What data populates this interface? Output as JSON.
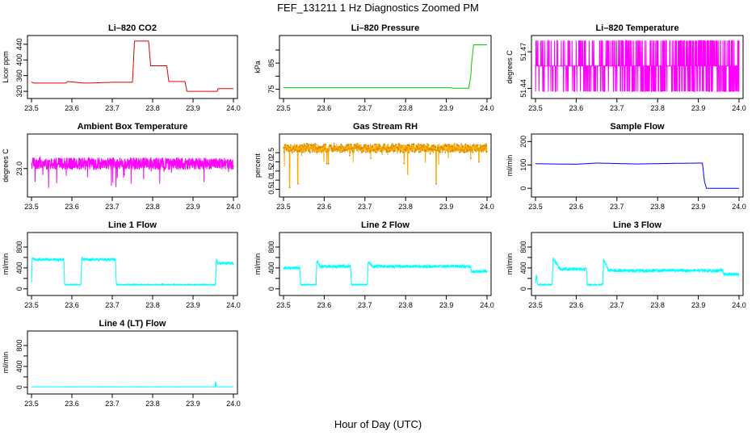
{
  "figure": {
    "title": "FEF_131211  1 Hz Diagnostics Zoomed PM",
    "xlabel": "Hour of Day (UTC)"
  },
  "chart_data": [
    {
      "id": "co2",
      "type": "line",
      "title": "Li–820 CO2",
      "ylabel": "Licor ppm",
      "color": "#dd0000",
      "xlim": [
        23.5,
        24.0
      ],
      "ylim": [
        312,
        452
      ],
      "xticks": [
        23.5,
        23.6,
        23.7,
        23.8,
        23.9,
        24.0
      ],
      "xtick_labels": [
        "23.5",
        "23.6",
        "23.7",
        "23.8",
        "23.9",
        "24.0"
      ],
      "yticks": [
        320,
        360,
        400,
        440
      ],
      "ytick_labels": [
        "320",
        "360",
        "400",
        "440"
      ],
      "series": [
        {
          "x": [
            23.5,
            23.505,
            23.51,
            23.585,
            23.59,
            23.63,
            23.64,
            23.7,
            23.75,
            23.755,
            23.79,
            23.795,
            23.835,
            23.84,
            23.88,
            23.885,
            23.96,
            23.962,
            24.0
          ],
          "y": [
            344,
            341,
            341,
            341,
            345,
            341,
            341,
            343,
            343,
            448,
            448,
            385,
            385,
            345,
            345,
            320,
            320,
            327,
            327
          ]
        }
      ]
    },
    {
      "id": "pressure",
      "type": "line",
      "title": "Li–820 Pressure",
      "ylabel": "kPa",
      "color": "#00cc00",
      "xlim": [
        23.5,
        24.0
      ],
      "ylim": [
        73,
        94
      ],
      "xticks": [
        23.5,
        23.6,
        23.7,
        23.8,
        23.9,
        24.0
      ],
      "xtick_labels": [
        "23.5",
        "23.6",
        "23.7",
        "23.8",
        "23.9",
        "24.0"
      ],
      "yticks": [
        75,
        80,
        85,
        90
      ],
      "ytick_labels": [
        "75",
        "",
        "85",
        ""
      ],
      "series": [
        {
          "x": [
            23.5,
            23.91,
            23.915,
            23.955,
            23.96,
            23.962,
            23.965,
            23.967,
            24.0
          ],
          "y": [
            75.6,
            75.6,
            75.4,
            75.4,
            80,
            85,
            89,
            92,
            92
          ]
        }
      ]
    },
    {
      "id": "licor_temp",
      "type": "line",
      "title": "Li–820 Temperature",
      "ylabel": "degrees C",
      "color": "#ff00ff",
      "xlim": [
        23.5,
        24.0
      ],
      "ylim": [
        51.435,
        51.48
      ],
      "xticks": [
        23.5,
        23.6,
        23.7,
        23.8,
        23.9,
        24.0
      ],
      "xtick_labels": [
        "23.5",
        "23.6",
        "23.7",
        "23.8",
        "23.9",
        "24.0"
      ],
      "yticks": [
        51.44,
        51.47
      ],
      "ytick_labels": [
        "51.44",
        "51.47"
      ],
      "pattern": {
        "kind": "quantized",
        "levels": [
          51.4375,
          51.4583,
          51.4792
        ],
        "base_level": 1,
        "density": [
          0.15,
          0.55
        ]
      }
    },
    {
      "id": "ambient_temp",
      "type": "line",
      "title": "Ambient Box Temperature",
      "ylabel": "degrees C",
      "color": "#ff00ff",
      "xlim": [
        23.5,
        24.0
      ],
      "ylim": [
        22.6,
        23.5
      ],
      "xticks": [
        23.5,
        23.6,
        23.7,
        23.8,
        23.9,
        24.0
      ],
      "xtick_labels": [
        "23.5",
        "23.6",
        "23.7",
        "23.8",
        "23.9",
        "24.0"
      ],
      "yticks": [
        23.0
      ],
      "ytick_labels": [
        "23.0"
      ],
      "pattern": {
        "kind": "noise",
        "mean": 23.08,
        "amplitude": 0.2,
        "spike_depth": 0.4
      }
    },
    {
      "id": "rh",
      "type": "line",
      "title": "Gas Stream RH",
      "ylabel": "percent",
      "color": "#ffaa00",
      "xlim": [
        23.5,
        24.0
      ],
      "ylim": [
        0.3,
        3.3
      ],
      "xticks": [
        23.5,
        23.6,
        23.7,
        23.8,
        23.9,
        24.0
      ],
      "xtick_labels": [
        "23.5",
        "23.6",
        "23.7",
        "23.8",
        "23.9",
        "24.0"
      ],
      "yticks": [
        0.5,
        1.0,
        1.5,
        2.0,
        2.5
      ],
      "ytick_labels": [
        "0.5",
        "1.0",
        "1.5",
        "2.0",
        "2.5"
      ],
      "pattern": {
        "kind": "noise",
        "mean": 2.75,
        "amplitude": 0.5,
        "spike_depth": 1.0
      },
      "dips": [
        {
          "x": 23.515,
          "y": 0.6
        },
        {
          "x": 23.535,
          "y": 0.8
        },
        {
          "x": 23.61,
          "y": 1.9
        },
        {
          "x": 23.805,
          "y": 1.3
        },
        {
          "x": 23.875,
          "y": 0.8
        },
        {
          "x": 23.98,
          "y": 2.0
        }
      ]
    },
    {
      "id": "sample_flow",
      "type": "line",
      "title": "Sample Flow",
      "ylabel": "ml/min",
      "color": "#0000ff",
      "xlim": [
        23.5,
        24.0
      ],
      "ylim": [
        -20,
        215
      ],
      "xticks": [
        23.5,
        23.6,
        23.7,
        23.8,
        23.9,
        24.0
      ],
      "xtick_labels": [
        "23.5",
        "23.6",
        "23.7",
        "23.8",
        "23.9",
        "24.0"
      ],
      "yticks": [
        0,
        100,
        200
      ],
      "ytick_labels": [
        "0",
        "100",
        "200"
      ],
      "series": [
        {
          "x": [
            23.5,
            23.6,
            23.65,
            23.75,
            23.85,
            23.91,
            23.915,
            23.92,
            24.0
          ],
          "y": [
            105,
            103,
            108,
            104,
            107,
            108,
            30,
            0,
            0
          ]
        }
      ]
    },
    {
      "id": "line1",
      "type": "line",
      "title": "Line 1 Flow",
      "ylabel": "ml/min",
      "color": "#00ffff",
      "xlim": [
        23.5,
        24.0
      ],
      "ylim": [
        -50,
        1000
      ],
      "xticks": [
        23.5,
        23.6,
        23.7,
        23.8,
        23.9,
        24.0
      ],
      "xtick_labels": [
        "23.5",
        "23.6",
        "23.7",
        "23.8",
        "23.9",
        "24.0"
      ],
      "yticks": [
        0,
        200,
        400,
        600,
        800
      ],
      "ytick_labels": [
        "0",
        "400",
        "800",
        "",
        ""
      ],
      "ytick_label_values": [
        0,
        400,
        800
      ],
      "series": [
        {
          "x": [
            23.5,
            23.502,
            23.505,
            23.58,
            23.582,
            23.622,
            23.625,
            23.628,
            23.708,
            23.71,
            23.955,
            23.958,
            23.96,
            24.0
          ],
          "y": [
            120,
            620,
            560,
            560,
            80,
            80,
            620,
            560,
            560,
            80,
            80,
            580,
            490,
            490
          ]
        }
      ],
      "noise": 25
    },
    {
      "id": "line2",
      "type": "line",
      "title": "Line 2 Flow",
      "ylabel": "ml/min",
      "color": "#00ffff",
      "xlim": [
        23.5,
        24.0
      ],
      "ylim": [
        -50,
        1000
      ],
      "xticks": [
        23.5,
        23.6,
        23.7,
        23.8,
        23.9,
        24.0
      ],
      "xtick_labels": [
        "23.5",
        "23.6",
        "23.7",
        "23.8",
        "23.9",
        "24.0"
      ],
      "yticks": [
        0,
        200,
        400,
        600,
        800
      ],
      "ytick_labels": [
        "0",
        "400",
        "800",
        "",
        ""
      ],
      "ytick_label_values": [
        0,
        400,
        800
      ],
      "series": [
        {
          "x": [
            23.5,
            23.54,
            23.542,
            23.58,
            23.582,
            23.59,
            23.665,
            23.667,
            23.706,
            23.708,
            23.72,
            23.96,
            23.962,
            24.0
          ],
          "y": [
            400,
            400,
            80,
            80,
            540,
            430,
            430,
            80,
            80,
            520,
            430,
            430,
            330,
            330
          ]
        }
      ],
      "noise": 30
    },
    {
      "id": "line3",
      "type": "line",
      "title": "Line 3 Flow",
      "ylabel": "ml/min",
      "color": "#00ffff",
      "xlim": [
        23.5,
        24.0
      ],
      "ylim": [
        -50,
        1000
      ],
      "xticks": [
        23.5,
        23.6,
        23.7,
        23.8,
        23.9,
        24.0
      ],
      "xtick_labels": [
        "23.5",
        "23.6",
        "23.7",
        "23.8",
        "23.9",
        "24.0"
      ],
      "yticks": [
        0,
        200,
        400,
        600,
        800
      ],
      "ytick_labels": [
        "0",
        "400",
        "800",
        "",
        ""
      ],
      "ytick_label_values": [
        0,
        400,
        800
      ],
      "series": [
        {
          "x": [
            23.5,
            23.502,
            23.505,
            23.541,
            23.543,
            23.56,
            23.625,
            23.627,
            23.665,
            23.667,
            23.68,
            23.96,
            23.962,
            24.0
          ],
          "y": [
            100,
            300,
            80,
            80,
            580,
            380,
            380,
            80,
            80,
            560,
            350,
            350,
            280,
            280
          ]
        }
      ],
      "noise": 30
    },
    {
      "id": "line4",
      "type": "line",
      "title": "Line 4 (LT) Flow",
      "ylabel": "ml/min",
      "color": "#00ffff",
      "xlim": [
        23.5,
        24.0
      ],
      "ylim": [
        -50,
        1000
      ],
      "xticks": [
        23.5,
        23.6,
        23.7,
        23.8,
        23.9,
        24.0
      ],
      "xtick_labels": [
        "23.5",
        "23.6",
        "23.7",
        "23.8",
        "23.9",
        "24.0"
      ],
      "yticks": [
        0,
        200,
        400,
        600,
        800
      ],
      "ytick_labels": [
        "0",
        "400",
        "800",
        "",
        ""
      ],
      "ytick_label_values": [
        0,
        400,
        800
      ],
      "series": [
        {
          "x": [
            23.5,
            23.955,
            23.956,
            23.958,
            23.96,
            24.0
          ],
          "y": [
            10,
            10,
            120,
            10,
            10,
            10
          ]
        }
      ],
      "noise": 3
    }
  ]
}
